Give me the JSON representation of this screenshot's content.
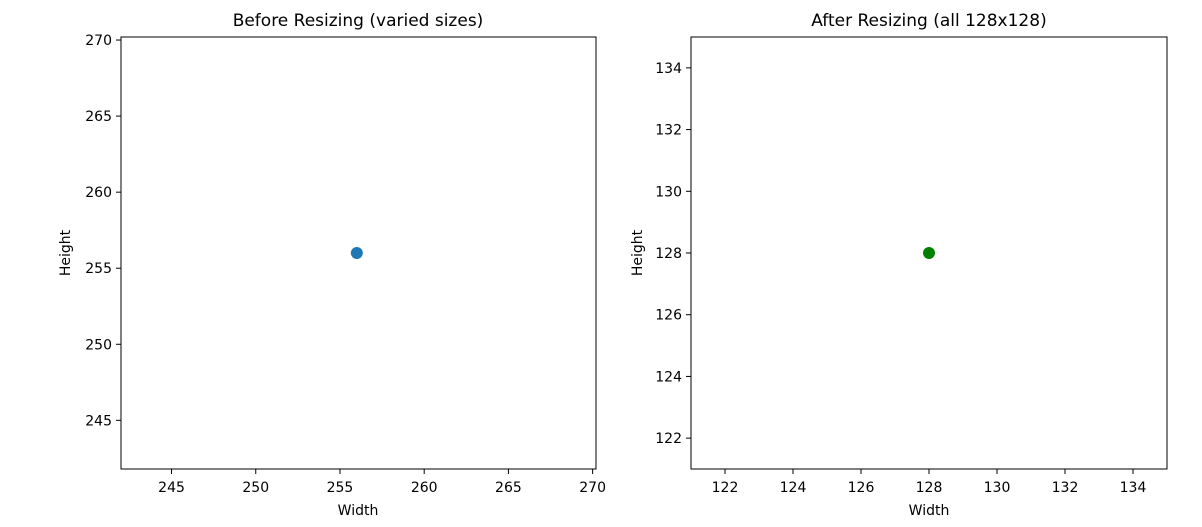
{
  "chart_data": [
    {
      "type": "scatter",
      "title": "Before Resizing (varied sizes)",
      "xlabel": "Width",
      "ylabel": "Height",
      "xlim": [
        242,
        270.2
      ],
      "ylim": [
        241.8,
        270.2
      ],
      "xticks": [
        245,
        250,
        255,
        260,
        265,
        270
      ],
      "yticks": [
        245,
        250,
        255,
        260,
        265,
        270
      ],
      "grid": false,
      "series": [
        {
          "color": "#1f77b4",
          "points": [
            {
              "x": 256,
              "y": 256
            }
          ]
        }
      ]
    },
    {
      "type": "scatter",
      "title": "After Resizing (all 128x128)",
      "xlabel": "Width",
      "ylabel": "Height",
      "xlim": [
        121,
        135
      ],
      "ylim": [
        121,
        135
      ],
      "xticks": [
        122,
        124,
        126,
        128,
        130,
        132,
        134
      ],
      "yticks": [
        122,
        124,
        126,
        128,
        130,
        132,
        134
      ],
      "grid": false,
      "series": [
        {
          "color": "#008000",
          "points": [
            {
              "x": 128,
              "y": 128
            }
          ]
        }
      ]
    }
  ]
}
